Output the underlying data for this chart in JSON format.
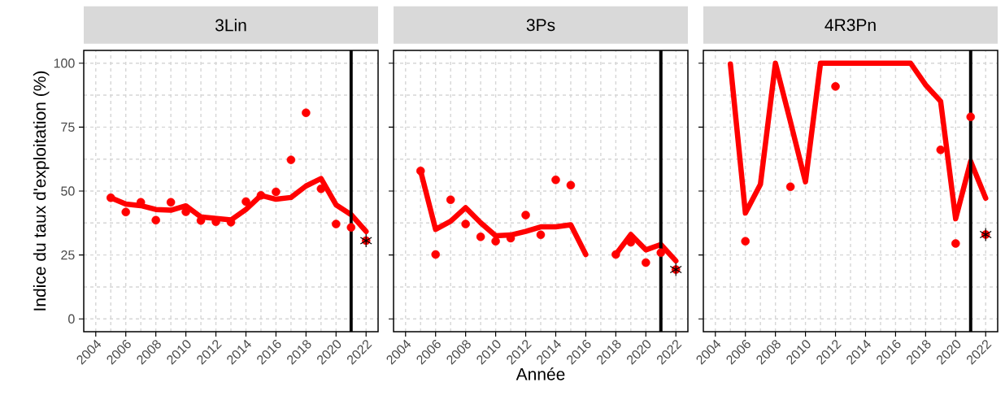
{
  "chart_data": [
    {
      "type": "line",
      "title": "3Lin",
      "ylabel": "Indice du taux d'exploitation (%)",
      "x": [
        2005,
        2006,
        2007,
        2008,
        2009,
        2010,
        2011,
        2012,
        2013,
        2014,
        2015,
        2016,
        2017,
        2018,
        2019,
        2020,
        2021,
        2022
      ],
      "series": [
        {
          "color": "#ff0000",
          "marker": "none",
          "values": [
            47.4,
            44.9,
            44.3,
            42.8,
            42.5,
            44.2,
            39.9,
            39.3,
            38.7,
            42.8,
            48.3,
            46.8,
            47.5,
            52.0,
            54.9,
            44.6,
            40.8,
            34.2
          ]
        },
        {
          "type": "scatter",
          "color": "#ff0000",
          "marker": "circle",
          "values": [
            47.4,
            41.8,
            45.6,
            38.6,
            45.6,
            41.9,
            38.5,
            38.0,
            37.8,
            45.9,
            48.3,
            49.7,
            62.2,
            80.6,
            50.9,
            37.1,
            35.8,
            30.6
          ]
        },
        {
          "type": "scatter",
          "color": "#000000",
          "marker": "cross",
          "values": [
            null,
            null,
            null,
            null,
            null,
            null,
            null,
            null,
            null,
            null,
            null,
            null,
            null,
            null,
            null,
            null,
            null,
            30.6
          ]
        }
      ],
      "ref_lines": [
        {
          "axis": "x",
          "value": 2021,
          "color": "#000000"
        }
      ],
      "xlim": [
        2003.2,
        2022.8
      ],
      "ylim": [
        -5,
        105
      ],
      "xticks": [
        2004,
        2006,
        2008,
        2010,
        2012,
        2014,
        2016,
        2018,
        2020,
        2022
      ],
      "yticks": [
        0,
        25,
        50,
        75,
        100
      ],
      "grid": true
    },
    {
      "type": "line",
      "title": "3Ps",
      "xlabel": "Année",
      "x": [
        2005,
        2006,
        2007,
        2008,
        2009,
        2010,
        2011,
        2012,
        2013,
        2014,
        2015,
        2016,
        2017,
        2018,
        2019,
        2020,
        2021,
        2022
      ],
      "series": [
        {
          "color": "#ff0000",
          "marker": "none",
          "values": [
            57.9,
            35.0,
            38.2,
            43.5,
            37.6,
            32.5,
            32.8,
            34.2,
            36.0,
            36.0,
            36.8,
            25.2,
            null,
            25.2,
            33.0,
            27.0,
            29.1,
            22.7
          ]
        },
        {
          "type": "scatter",
          "color": "#ff0000",
          "marker": "circle",
          "values": [
            57.9,
            25.2,
            46.6,
            37.1,
            32.1,
            30.4,
            31.6,
            40.6,
            32.9,
            54.4,
            52.3,
            null,
            null,
            25.2,
            30.0,
            22.0,
            25.9,
            19.3
          ]
        },
        {
          "type": "scatter",
          "color": "#000000",
          "marker": "cross",
          "values": [
            null,
            null,
            null,
            null,
            null,
            null,
            null,
            null,
            null,
            null,
            null,
            null,
            null,
            null,
            null,
            null,
            null,
            19.3
          ]
        }
      ],
      "ref_lines": [
        {
          "axis": "x",
          "value": 2021,
          "color": "#000000"
        }
      ],
      "xlim": [
        2003.2,
        2022.8
      ],
      "ylim": [
        -5,
        105
      ],
      "xticks": [
        2004,
        2006,
        2008,
        2010,
        2012,
        2014,
        2016,
        2018,
        2020,
        2022
      ],
      "yticks": [
        0,
        25,
        50,
        75,
        100
      ],
      "grid": true,
      "tick_labels": "x"
    },
    {
      "type": "line",
      "title": "4R3Pn",
      "x": [
        2005,
        2006,
        2007,
        2008,
        2009,
        2010,
        2011,
        2012,
        2013,
        2014,
        2015,
        2016,
        2017,
        2018,
        2019,
        2020,
        2021,
        2022
      ],
      "series": [
        {
          "color": "#ff0000",
          "marker": "none",
          "values": [
            99.7,
            41.4,
            52.6,
            100,
            77.1,
            53.6,
            100,
            100,
            100,
            100,
            100,
            100,
            100,
            91.5,
            85.1,
            39.2,
            61.6,
            47.2
          ]
        },
        {
          "type": "scatter",
          "color": "#ff0000",
          "marker": "circle",
          "values": [
            null,
            30.4,
            null,
            null,
            51.7,
            null,
            null,
            90.9,
            null,
            null,
            null,
            null,
            null,
            null,
            66.1,
            29.5,
            79.0,
            33.0
          ]
        },
        {
          "type": "scatter",
          "color": "#000000",
          "marker": "cross",
          "values": [
            null,
            null,
            null,
            null,
            null,
            null,
            null,
            null,
            null,
            null,
            null,
            null,
            null,
            null,
            null,
            null,
            null,
            33.0
          ]
        }
      ],
      "ref_lines": [
        {
          "axis": "x",
          "value": 2021,
          "color": "#000000"
        }
      ],
      "xlim": [
        2003.2,
        2022.8
      ],
      "ylim": [
        -5,
        105
      ],
      "xticks": [
        2004,
        2006,
        2008,
        2010,
        2012,
        2014,
        2016,
        2018,
        2020,
        2022
      ],
      "yticks": [
        0,
        25,
        50,
        75,
        100
      ],
      "grid": true,
      "tick_labels": "x"
    }
  ]
}
